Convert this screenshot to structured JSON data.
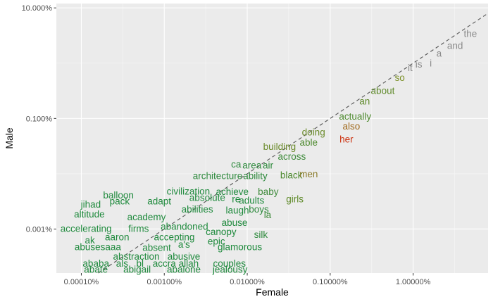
{
  "chart_data": {
    "type": "scatter",
    "xlabel": "Female",
    "ylabel": "Male",
    "x_scale": "log10",
    "y_scale": "log10",
    "xlim": [
      5e-07,
      0.08
    ],
    "ylim": [
      1.6e-06,
      0.12
    ],
    "x_ticks": [
      {
        "value": 1e-06,
        "label": "0.00010%"
      },
      {
        "value": 1e-05,
        "label": "0.00100%"
      },
      {
        "value": 0.0001,
        "label": "0.01000%"
      },
      {
        "value": 0.001,
        "label": "0.10000%"
      },
      {
        "value": 0.01,
        "label": "1.00000%"
      }
    ],
    "y_ticks": [
      {
        "value": 1e-05,
        "label": "0.001%"
      },
      {
        "value": 0.001,
        "label": "0.100%"
      },
      {
        "value": 0.1,
        "label": "10.000%"
      }
    ],
    "grid": true,
    "reference_line": "y = x",
    "points": [
      {
        "word": "the",
        "x": 0.049,
        "y": 0.033,
        "color": "#8a8a8a"
      },
      {
        "word": "and",
        "x": 0.032,
        "y": 0.02,
        "color": "#8a8a8a"
      },
      {
        "word": "a",
        "x": 0.0205,
        "y": 0.0145,
        "color": "#8a8a8a"
      },
      {
        "word": "i",
        "x": 0.0163,
        "y": 0.0097,
        "color": "#8a8a8a"
      },
      {
        "word": "is",
        "x": 0.0117,
        "y": 0.0092,
        "color": "#8a8a8a"
      },
      {
        "word": "it",
        "x": 0.0092,
        "y": 0.008,
        "color": "#8a8a8a"
      },
      {
        "word": "so",
        "x": 0.0069,
        "y": 0.0053,
        "color": "#7c9128"
      },
      {
        "word": "about",
        "x": 0.0043,
        "y": 0.0031,
        "color": "#5f8a2a"
      },
      {
        "word": "an",
        "x": 0.0026,
        "y": 0.002,
        "color": "#5f8a2a"
      },
      {
        "word": "actually",
        "x": 0.002,
        "y": 0.00105,
        "color": "#4d8a2e"
      },
      {
        "word": "also",
        "x": 0.0018,
        "y": 0.0007,
        "color": "#a06a1c"
      },
      {
        "word": "her",
        "x": 0.00157,
        "y": 0.00041,
        "color": "#cc3311"
      },
      {
        "word": "doing",
        "x": 0.00063,
        "y": 0.00055,
        "color": "#6a8a2a"
      },
      {
        "word": "able",
        "x": 0.00055,
        "y": 0.00036,
        "color": "#4d8a2e"
      },
      {
        "word": "building",
        "x": 0.000245,
        "y": 0.0003,
        "color": "#6a8a2a"
      },
      {
        "word": "across",
        "x": 0.000345,
        "y": 0.0002,
        "color": "#3d8a3a"
      },
      {
        "word": "ca",
        "x": 7.35e-05,
        "y": 0.000145,
        "color": "#2e8a3d"
      },
      {
        "word": "area",
        "x": 0.000114,
        "y": 0.000138,
        "color": "#2e8a3d"
      },
      {
        "word": "air",
        "x": 0.000178,
        "y": 0.000138,
        "color": "#2e8a3d"
      },
      {
        "word": "black",
        "x": 0.00034,
        "y": 9.2e-05,
        "color": "#4d8a2e"
      },
      {
        "word": "men",
        "x": 0.00055,
        "y": 9.6e-05,
        "color": "#8a7a2a"
      },
      {
        "word": "architecture",
        "x": 4.4e-05,
        "y": 8.9e-05,
        "color": "#2e8a3d"
      },
      {
        "word": "ability",
        "x": 0.000125,
        "y": 8.9e-05,
        "color": "#2e8a3d"
      },
      {
        "word": "civilization",
        "x": 1.95e-05,
        "y": 4.65e-05,
        "color": "#1f8a3d"
      },
      {
        "word": "achieve",
        "x": 6.6e-05,
        "y": 4.6e-05,
        "color": "#1f8a3d"
      },
      {
        "word": "baby",
        "x": 0.000179,
        "y": 4.6e-05,
        "color": "#3d8a3a"
      },
      {
        "word": "balloon",
        "x": 2.8e-06,
        "y": 3.95e-05,
        "color": "#1f8a3d"
      },
      {
        "word": "absolute",
        "x": 3.3e-05,
        "y": 3.6e-05,
        "color": "#1f8a3d"
      },
      {
        "word": "re",
        "x": 7.35e-05,
        "y": 3.4e-05,
        "color": "#1f8a3d"
      },
      {
        "word": "adults",
        "x": 0.000113,
        "y": 3.2e-05,
        "color": "#1f8a3d"
      },
      {
        "word": "girls",
        "x": 0.000375,
        "y": 3.4e-05,
        "color": "#5f8a2a"
      },
      {
        "word": "jihad",
        "x": 1.3e-06,
        "y": 2.7e-05,
        "color": "#1f8a3d"
      },
      {
        "word": "pack",
        "x": 2.9e-06,
        "y": 3.1e-05,
        "color": "#1f8a3d"
      },
      {
        "word": "adapt",
        "x": 8.7e-06,
        "y": 3.1e-05,
        "color": "#1f8a3d"
      },
      {
        "word": "abilities",
        "x": 2.5e-05,
        "y": 2.2e-05,
        "color": "#1f8a3d"
      },
      {
        "word": "laugh",
        "x": 7.6e-05,
        "y": 2.1e-05,
        "color": "#1f8a3d"
      },
      {
        "word": "boys",
        "x": 0.000138,
        "y": 2.2e-05,
        "color": "#2e8a3d"
      },
      {
        "word": "altitude",
        "x": 1.25e-06,
        "y": 1.8e-05,
        "color": "#1f8a3d"
      },
      {
        "word": "academy",
        "x": 6.1e-06,
        "y": 1.6e-05,
        "color": "#1f8a3d"
      },
      {
        "word": "la",
        "x": 0.000176,
        "y": 1.75e-05,
        "color": "#3d8a3a"
      },
      {
        "word": "abandoned",
        "x": 1.75e-05,
        "y": 1.07e-05,
        "color": "#1f8a3d"
      },
      {
        "word": "abuse",
        "x": 7.03e-05,
        "y": 1.26e-05,
        "color": "#1f8a3d"
      },
      {
        "word": "accelerating",
        "x": 1.14e-06,
        "y": 9.9e-06,
        "color": "#1f8a3d"
      },
      {
        "word": "firms",
        "x": 4.9e-06,
        "y": 9.9e-06,
        "color": "#1f8a3d"
      },
      {
        "word": "aaron",
        "x": 2.7e-06,
        "y": 6.9e-06,
        "color": "#1f8a3d"
      },
      {
        "word": "accepting",
        "x": 1.32e-05,
        "y": 6.9e-06,
        "color": "#1f8a3d"
      },
      {
        "word": "canopy",
        "x": 4.84e-05,
        "y": 8.7e-06,
        "color": "#1f8a3d"
      },
      {
        "word": "silk",
        "x": 0.000146,
        "y": 7.7e-06,
        "color": "#2e8a3d"
      },
      {
        "word": "ak",
        "x": 1.27e-06,
        "y": 6.1e-06,
        "color": "#1f8a3d"
      },
      {
        "word": "epic",
        "x": 4.25e-05,
        "y": 5.8e-06,
        "color": "#1f8a3d"
      },
      {
        "word": "a's",
        "x": 1.73e-05,
        "y": 5.1e-06,
        "color": "#1f8a3d"
      },
      {
        "word": "abusesaaa",
        "x": 1.58e-06,
        "y": 4.6e-06,
        "color": "#1f8a3d"
      },
      {
        "word": "absent",
        "x": 8.1e-06,
        "y": 4.5e-06,
        "color": "#1f8a3d"
      },
      {
        "word": "glamorous",
        "x": 8.15e-05,
        "y": 4.6e-06,
        "color": "#1f8a3d"
      },
      {
        "word": "abstraction",
        "x": 4.6e-06,
        "y": 3.1e-06,
        "color": "#1f8a3d"
      },
      {
        "word": "abusive",
        "x": 1.72e-05,
        "y": 3.1e-06,
        "color": "#1f8a3d"
      },
      {
        "word": "ababa",
        "x": 1.5e-06,
        "y": 2.3e-06,
        "color": "#1f8a3d"
      },
      {
        "word": "als",
        "x": 3.1e-06,
        "y": 2.3e-06,
        "color": "#1f8a3d"
      },
      {
        "word": "bl",
        "x": 5.1e-06,
        "y": 2.3e-06,
        "color": "#1f8a3d"
      },
      {
        "word": "accra",
        "x": 1e-05,
        "y": 2.3e-06,
        "color": "#1f8a3d"
      },
      {
        "word": "allah",
        "x": 1.97e-05,
        "y": 2.3e-06,
        "color": "#1f8a3d"
      },
      {
        "word": "couples",
        "x": 6.1e-05,
        "y": 2.3e-06,
        "color": "#1f8a3d"
      },
      {
        "word": "abate",
        "x": 1.5e-06,
        "y": 1.8e-06,
        "color": "#1f8a3d"
      },
      {
        "word": "abigail",
        "x": 4.7e-06,
        "y": 1.8e-06,
        "color": "#1f8a3d"
      },
      {
        "word": "abalone",
        "x": 1.72e-05,
        "y": 1.8e-06,
        "color": "#1f8a3d"
      },
      {
        "word": "jealousy",
        "x": 6.21e-05,
        "y": 1.8e-06,
        "color": "#1f8a3d"
      }
    ]
  }
}
